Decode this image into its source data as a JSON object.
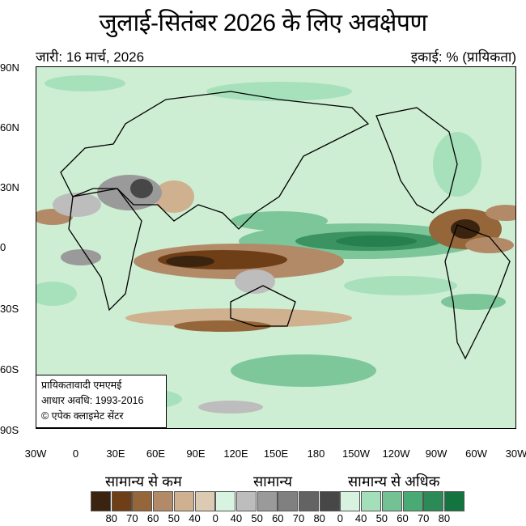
{
  "title": "जुलाई-सितंबर 2026 के लिए अवक्षेपण",
  "issued": "जारी: 16 मार्च, 2026",
  "units": "इकाई: % (प्रायिकता)",
  "lat_labels": [
    "90N",
    "60N",
    "30N",
    "0",
    "30S",
    "60S",
    "90S"
  ],
  "lon_labels": [
    "30W",
    "0",
    "30E",
    "60E",
    "90E",
    "120E",
    "150E",
    "180",
    "150W",
    "120W",
    "90W",
    "60W",
    "30W"
  ],
  "info": [
    "प्रायिकतावादी एमएमई",
    "आधार अवधि: 1993-2016",
    "© एपेक क्लाइमेट सेंटर"
  ],
  "legend": {
    "categories": [
      "सामान्य से कम",
      "सामान्य",
      "सामान्य से अधिक"
    ],
    "colors": [
      "#3a2410",
      "#6e3f17",
      "#946639",
      "#b38a68",
      "#cfb08f",
      "#dccbb2",
      "#d8f3df",
      "#bdbdbd",
      "#9a9a9a",
      "#808080",
      "#636363",
      "#474747",
      "#d7f3df",
      "#a3dfb9",
      "#74c294",
      "#4aaa74",
      "#2b8a55",
      "#147440"
    ],
    "labels": [
      "80",
      "70",
      "60",
      "50",
      "40",
      "0",
      "40",
      "50",
      "60",
      "70",
      "80",
      "0",
      "40",
      "50",
      "60",
      "70",
      "80"
    ]
  }
}
